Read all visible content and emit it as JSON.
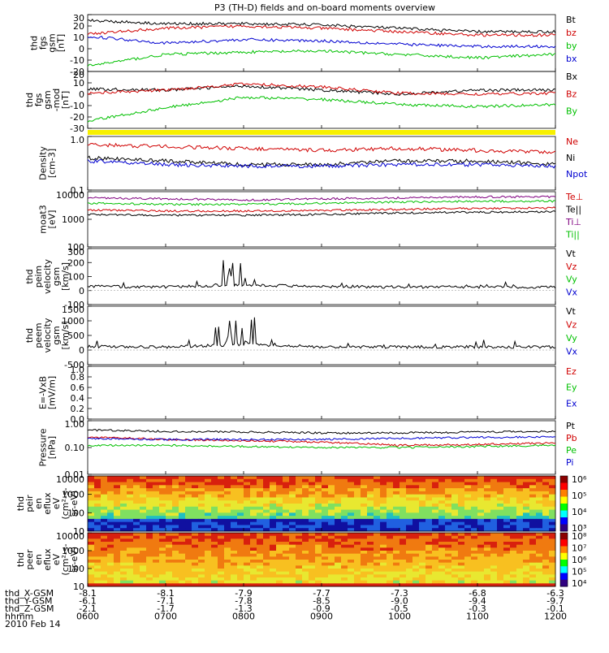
{
  "title": "P3 (TH-D) fields and on-board moments overview",
  "x_labels": [
    "0600",
    "0700",
    "0800",
    "0900",
    "1000",
    "1100",
    "1200"
  ],
  "orbit": {
    "labels": [
      "thd_X-GSM",
      "thd_Y-GSM",
      "thd_Z-GSM",
      "hhmm",
      "2010 Feb 14"
    ],
    "x": [
      "-8.1",
      "-8.1",
      "-7.9",
      "-7.7",
      "-7.3",
      "-6.8",
      "-6.3"
    ],
    "y": [
      "-6.1",
      "-7.1",
      "-7.8",
      "-8.5",
      "-9.0",
      "-9.4",
      "-9.7"
    ],
    "z": [
      "-2.1",
      "-1.7",
      "-1.3",
      "-0.9",
      "-0.5",
      "-0.3",
      "-0.1"
    ]
  },
  "panels": [
    {
      "ylabel": [
        "thd",
        "fgs",
        "gsm",
        "[nT]"
      ],
      "ticks": [
        "30",
        "20",
        "10",
        "0",
        "-10",
        "-20"
      ],
      "legend": [
        {
          "t": "Bt",
          "c": "#000000"
        },
        {
          "t": "bz",
          "c": "#d00000"
        },
        {
          "t": "by",
          "c": "#00c000"
        },
        {
          "t": "bx",
          "c": "#0000d0"
        }
      ]
    },
    {
      "ylabel": [
        "thd",
        "fgs",
        "gsm",
        "-mod",
        "[nT]"
      ],
      "ticks": [
        "20",
        "10",
        "0",
        "-10",
        "-20",
        "-30"
      ],
      "legend": [
        {
          "t": "Bx",
          "c": "#000000"
        },
        {
          "t": "Bz",
          "c": "#d00000"
        },
        {
          "t": "By",
          "c": "#00c000"
        }
      ]
    },
    {
      "ylabel": [
        "Density",
        "[cm-3]"
      ],
      "ticks": [
        "1.0",
        "0.1"
      ],
      "legend": [
        {
          "t": "Ne",
          "c": "#d00000"
        },
        {
          "t": "Ni",
          "c": "#000000"
        },
        {
          "t": "Npot",
          "c": "#0000d0"
        }
      ]
    },
    {
      "ylabel": [
        "moat3",
        "[eV]"
      ],
      "ticks": [
        "10000",
        "1000",
        "100"
      ],
      "legend": [
        {
          "t": "Te⊥",
          "c": "#d00000"
        },
        {
          "t": "Te||",
          "c": "#000000"
        },
        {
          "t": "Ti⊥",
          "c": "#800080"
        },
        {
          "t": "Ti||",
          "c": "#00c000"
        }
      ]
    },
    {
      "ylabel": [
        "thd",
        "peim",
        "velocity",
        "gsm",
        "[km/s]"
      ],
      "ticks": [
        "300",
        "200",
        "100",
        "0",
        "-100"
      ],
      "legend": [
        {
          "t": "Vt",
          "c": "#000000"
        },
        {
          "t": "Vz",
          "c": "#d00000"
        },
        {
          "t": "Vy",
          "c": "#00c000"
        },
        {
          "t": "Vx",
          "c": "#0000d0"
        }
      ]
    },
    {
      "ylabel": [
        "thd",
        "peem",
        "velocity",
        "gsm",
        "[km/s]"
      ],
      "ticks": [
        "1500",
        "1000",
        "500",
        "0",
        "-500"
      ],
      "legend": [
        {
          "t": "Vt",
          "c": "#000000"
        },
        {
          "t": "Vz",
          "c": "#d00000"
        },
        {
          "t": "Vy",
          "c": "#00c000"
        },
        {
          "t": "Vx",
          "c": "#0000d0"
        }
      ]
    },
    {
      "ylabel": [
        "E=-VxB",
        "[mV/m]"
      ],
      "ticks": [
        "1.0",
        "0.8",
        "0.6",
        "0.4",
        "0.2",
        "0.0"
      ],
      "legend": [
        {
          "t": "Ez",
          "c": "#d00000"
        },
        {
          "t": "Ey",
          "c": "#00c000"
        },
        {
          "t": "Ex",
          "c": "#0000d0"
        }
      ]
    },
    {
      "ylabel": [
        "Pressure",
        "[nPa]"
      ],
      "ticks": [
        "1.00",
        "0.10",
        "0.01"
      ],
      "legend": [
        {
          "t": "Pt",
          "c": "#000000"
        },
        {
          "t": "Pb",
          "c": "#d00000"
        },
        {
          "t": "Pe",
          "c": "#00c000"
        },
        {
          "t": "Pi",
          "c": "#0000d0"
        }
      ]
    },
    {
      "ylabel": [
        "thd",
        "peir",
        "en",
        "eflux",
        "eV",
        "(cm²-s-",
        "sr-eV)"
      ],
      "ticks": [
        "10000",
        "1000",
        "100",
        "10"
      ],
      "colorbar": [
        "10⁶",
        "10⁵",
        "10⁴",
        "10³"
      ]
    },
    {
      "ylabel": [
        "thd",
        "peer",
        "en",
        "eflux",
        "eV",
        "(cm²-s-",
        "sr-eV)"
      ],
      "ticks": [
        "10000",
        "1000",
        "100",
        "10"
      ],
      "colorbar": [
        "10⁸",
        "10⁷",
        "10⁶",
        "10⁵",
        "10⁴"
      ]
    }
  ],
  "chart_data": {
    "type": "line",
    "title": "P3 (TH-D) fields and on-board moments overview",
    "time": [
      "0600",
      "0700",
      "0800",
      "0900",
      "1000",
      "1100",
      "1200"
    ],
    "series": [
      {
        "panel": 0,
        "name": "Bt",
        "values": [
          25,
          22,
          22,
          21,
          18,
          15,
          15
        ]
      },
      {
        "panel": 0,
        "name": "bz",
        "values": [
          13,
          18,
          20,
          18,
          15,
          12,
          12
        ]
      },
      {
        "panel": 0,
        "name": "by",
        "values": [
          -15,
          -5,
          -3,
          -2,
          -5,
          -8,
          -5
        ]
      },
      {
        "panel": 0,
        "name": "bx",
        "values": [
          11,
          5,
          8,
          7,
          4,
          2,
          2
        ]
      },
      {
        "panel": 1,
        "name": "Bx",
        "values": [
          3,
          2,
          6,
          2,
          -2,
          2,
          2
        ]
      },
      {
        "panel": 1,
        "name": "Bz",
        "values": [
          -1,
          2,
          8,
          5,
          -1,
          -2,
          -1
        ]
      },
      {
        "panel": 1,
        "name": "By",
        "values": [
          -28,
          -15,
          -5,
          -7,
          -12,
          -14,
          -12
        ]
      },
      {
        "panel": 2,
        "name": "Ne",
        "values": [
          0.7,
          0.65,
          0.6,
          0.55,
          0.6,
          0.55,
          0.5
        ]
      },
      {
        "panel": 2,
        "name": "Ni",
        "values": [
          0.4,
          0.35,
          0.3,
          0.3,
          0.35,
          0.35,
          0.3
        ]
      },
      {
        "panel": 2,
        "name": "Npot",
        "values": [
          0.35,
          0.3,
          0.28,
          0.28,
          0.3,
          0.3,
          0.28
        ]
      },
      {
        "panel": 3,
        "name": "Te⊥",
        "values": [
          2200,
          2000,
          2000,
          2100,
          2300,
          2500,
          2600
        ]
      },
      {
        "panel": 3,
        "name": "Te||",
        "values": [
          1500,
          1400,
          1400,
          1500,
          1700,
          1800,
          1900
        ]
      },
      {
        "panel": 3,
        "name": "Ti⊥",
        "values": [
          6000,
          5500,
          5000,
          5500,
          6000,
          6500,
          6500
        ]
      },
      {
        "panel": 3,
        "name": "Ti||",
        "values": [
          3800,
          3500,
          3500,
          3800,
          4200,
          4500,
          4500
        ]
      },
      {
        "panel": 4,
        "name": "Vt",
        "values": [
          30,
          25,
          40,
          30,
          25,
          25,
          25
        ]
      },
      {
        "panel": 5,
        "name": "Vt",
        "values": [
          120,
          100,
          200,
          110,
          100,
          110,
          100
        ]
      },
      {
        "panel": 7,
        "name": "Pt",
        "values": [
          0.45,
          0.4,
          0.38,
          0.35,
          0.35,
          0.38,
          0.4
        ]
      },
      {
        "panel": 7,
        "name": "Pb",
        "values": [
          0.25,
          0.2,
          0.18,
          0.16,
          0.12,
          0.13,
          0.15
        ]
      },
      {
        "panel": 7,
        "name": "Pe",
        "values": [
          0.12,
          0.12,
          0.11,
          0.1,
          0.1,
          0.11,
          0.12
        ]
      },
      {
        "panel": 7,
        "name": "Pi",
        "values": [
          0.22,
          0.2,
          0.2,
          0.2,
          0.22,
          0.24,
          0.25
        ]
      }
    ]
  }
}
